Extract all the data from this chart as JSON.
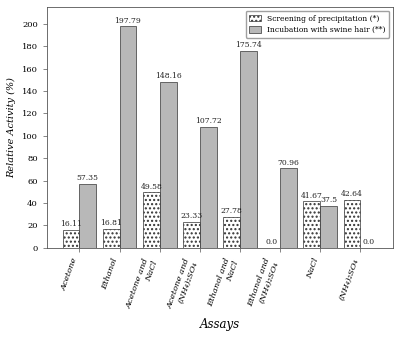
{
  "categories": [
    "Acetone",
    "Ethanol",
    "Acetone and\nNaCl",
    "Acetone and\n(NH₄)₂SO₄",
    "Ethanol and\nNaCl",
    "Ethanol and\n(NH₄)₂SO₄",
    "NaCl",
    "(NH₄)₂SO₄"
  ],
  "screening_values": [
    16.11,
    16.81,
    49.58,
    23.33,
    27.78,
    0.0,
    41.67,
    42.64
  ],
  "incubation_values": [
    57.35,
    197.79,
    148.16,
    107.72,
    175.74,
    70.96,
    37.5,
    0.0
  ],
  "incubation_color": "#b8b8b8",
  "ylim": [
    0,
    215
  ],
  "yticks": [
    0,
    20,
    40,
    60,
    80,
    100,
    120,
    140,
    160,
    180,
    200
  ],
  "ylabel": "Relative Activity (%)",
  "xlabel": "Assays",
  "legend_labels": [
    "Screening of precipitation (*)",
    "Incubation with swine hair (**)"
  ],
  "bar_width": 0.42,
  "label_fontsize": 7,
  "tick_fontsize": 6,
  "annotation_fontsize": 5.5
}
